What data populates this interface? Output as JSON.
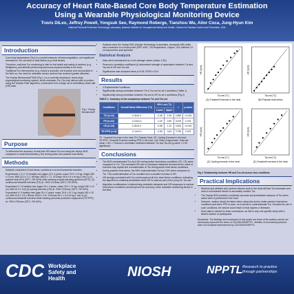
{
  "header": {
    "title": "Accuracy of Heart Rate-Based Core Body Temperature Estimation Using a Wearable Physiological Monitoring Device",
    "authors": "Travis DiLeo, Jeffrey Powell, Yongsuk Seo, Raymond Roberge, Tianzhou Wu, Aitor Coca, Jung-Hyun Kim",
    "affiliation": "National Personal Protective Technology Laboratory, National Institute for Occupational Safety and Health, Centers for Disease Control and Prevention, USA"
  },
  "introduction": {
    "heading": "Introduction",
    "items": [
      "Core body temperature (Tco) is a central measure of thermoregulation, and significant increases in Tco can lead to heat illness (e.g. heat stroke).",
      "Therefore, real-time Tco monitoring is vital for the health and safety of workers (e.g. firefighters) and athletes performing strenuous physical activity in the heat.",
      "Traditional Tco thermometry (e.g. rectal) is accurate, but invasive and not practical in the field; so, the need for wearable sensor devices has received greater attention.",
      "The Zephyr Bioharness® BH3 (Fig 1.) is a currently-developed, chest-strap physiological monitoring system, which estimates Tco (Tco-est) without pills or probes, using the Kalman Filter algorithm, constructed from a large set of ambulatory heart rate (HR) data."
    ],
    "figure_caption": "Fig 1. Zephyr Bioharness®"
  },
  "purpose": {
    "heading": "Purpose",
    "items": [
      "To determine the accuracy of real-time HR-based Tco-est using the Zephyr BH3 compared to rectal thermometry (Tre) during active and passive heat stress"
    ]
  },
  "methods": {
    "heading": "Methods",
    "items": [
      "Subjects completed 4 heat stress conditions in an environmental chamber",
      "Experiments 1 & 2: 12 healthy men [ages 23 ± 4 years, mass 79.9 ± 10 kg, height 180 ± 10 cm, BMI 23.3 ± 2.2, HRmax 186.6 ± 7.2, VO2max 49.8 ± 6.4 ml·kg-1·min-1] (1) passive heat (PH) (40°C, RH 50%) while wearing a liquid warming garment (45°C); (2) continuous treadmill exercise (TE) at ~50% VO2max (35°C, RH 50%).",
      "Experiment 3: 10 healthy men [ages 23 ± 2 years, mass 78.9 ± 12 kg, height 180 ± 10 cm, BMI 24.3 ± 3.0] (3) cycling exercise (CE) at ~50% VO2max (35°C, RH 50%).",
      "Experiment 4: 5 healthy men [age 26 ± 2 years, mass 76.6 ± 10.1 kg, height 180 ± 10 cm, BMI 23.8 ± 2.8, HRmax 184.6 ± 5.6, VO2max 50.2 ± 6.0 ml·kg-1·min-1] (4) continuous treadmill exercise while wearing personal protective equipment (TE+PPE) at ~50% VO2max (35°C, RH 60%)."
    ]
  },
  "methods_cont": {
    "items": [
      "Subjects wore the Zephyr BH3 (Zephyr Technology Corporation, Annapolis MD) while also connected to a rectal probe (REF-4491, YSI temperature, Dayton, OH) inserted 13 cm beyond the anal sphincter"
    ]
  },
  "statistics": {
    "heading": "Statistical Analysis",
    "items": [
      "Data were summarized as 1-min average values (mean ± SD)",
      "Pearson's correlation coefficient (r) determined strength of association between Tre and Tco-est & HR and Tco-est",
      "Significance was accepted when p<0.05; SPSS v.19.0"
    ]
  },
  "results": {
    "heading": "Results",
    "items": [
      "4 Experimental Conditions",
      "Significantly strong correlation between Tre & Tco-est for all 4 conditions (Table 1)",
      "Significantly strong correlation between Tco-est & HR for all 4 conditions (Fig 2)"
    ]
  },
  "table": {
    "title": "TABLE 1: Summary of the comparison between Tre and Tco-est",
    "header": [
      "Conditions",
      "Overall Mean Difference (°C)",
      "95% LoA (°C)",
      "Lower",
      "Upper",
      "r",
      "p-value"
    ],
    "rows": [
      [
        "TE (n=12)",
        "0.34±0.4",
        "-0.38",
        "1.05",
        "0.859",
        "<0.001"
      ],
      [
        "PH (n=22)",
        "-0.24±0.4",
        "-1.00",
        "0.69",
        "0.678",
        "0.031"
      ],
      [
        "CE (n=13)",
        "0.34±0.4",
        "-0.58",
        "1.12",
        "0.824",
        "<0.001"
      ],
      [
        "TE+PPE (n=8)",
        "-0.14±0.4",
        "-0.85",
        "0.64",
        "0.784",
        "0.021"
      ]
    ],
    "note": "TE, Treadmill Exercise in the heat; PH, Passive Heat; CE, Cycling Exercise in the heat; TE+PPE, Treadmill Exercise wearing PPE in the heat. LoA: limits of agreement. Data are mean ± SD. r: Pearson's correlation coefficient between Tre and Tco-est (p-value < 0.05 significant)."
  },
  "conclusions": {
    "heading": "Conclusions",
    "items": [
      "The BH3 overestimated Tco by 0.8% during active heat stress conditions (TE, CE) when compared to Tre. The increased HR due to increased metabolic demand at the onset of exercise may explain the overestimation of Tco during active heat stress conditions.",
      "During passive heat stress, the BH3 underestimated Tco by 0.5% when compared to Tre. This underestimation of Tco resulted from a smaller increase in HR.",
      "HR strongly correlated with Tco-est throughout all four heat stress conditions, indicating the algorithm is relatively predictable when HR is used as part of the proxy for Tco-est.",
      "Algorithm modifications in determining metabolic demands and HR responses to various heat stress conditions would improve the accuracy of the wearable monitoring device in the field."
    ]
  },
  "figure": {
    "caption": "Fig 2. Relationship between HR and Tco-est across four conditions",
    "panels": [
      {
        "caption": "(A) Treadmill Exercise in the heat",
        "x_label": "Tco-est (°C)",
        "y_label": "HR (bpm)",
        "xlim": [
          36.5,
          39.5
        ],
        "ylim": [
          60,
          190
        ],
        "x": [
          36.8,
          37.0,
          37.2,
          37.4,
          37.6,
          37.8,
          38.0,
          38.3,
          38.6,
          38.9,
          39.1
        ],
        "y": [
          72,
          88,
          98,
          110,
          118,
          128,
          138,
          150,
          160,
          172,
          178
        ]
      },
      {
        "caption": "(B) Physical heat stress",
        "x_label": "Tco-est (°C)",
        "y_label": "HR (bpm)",
        "xlim": [
          36.5,
          39.5
        ],
        "ylim": [
          60,
          190
        ],
        "x": [
          36.7,
          36.9,
          37.1,
          37.3,
          37.5,
          37.7,
          37.9,
          38.1,
          38.3
        ],
        "y": [
          66,
          75,
          84,
          92,
          101,
          110,
          118,
          126,
          134
        ]
      },
      {
        "caption": "(C) Cycling exercise in the heat",
        "x_label": "Tco-est (°C)",
        "y_label": "HR (bpm)",
        "xlim": [
          36.5,
          39.5
        ],
        "ylim": [
          60,
          190
        ],
        "x": [
          36.8,
          37.1,
          37.3,
          37.5,
          37.8,
          38.0,
          38.3,
          38.5,
          38.8
        ],
        "y": [
          78,
          95,
          106,
          116,
          128,
          136,
          148,
          156,
          168
        ]
      },
      {
        "caption": "(D) Treadmill exercise in the heat",
        "x_label": "Tco-est (°C)",
        "y_label": "HR (bpm)",
        "xlim": [
          36.5,
          39.5
        ],
        "ylim": [
          60,
          190
        ],
        "x": [
          36.9,
          37.1,
          37.4,
          37.7,
          38.0,
          38.3,
          38.6,
          38.9
        ],
        "y": [
          82,
          94,
          108,
          122,
          134,
          148,
          160,
          172
        ]
      }
    ]
  },
  "implications": {
    "heading": "Practical Implications",
    "items": [
      "Workers and athletes who perform intense work in the heat will face Tco increases and need a noninvasive device to accurately monitor Tco",
      "The Zephyr BH3 provides a relatively accurate and predictable measure of Tco when active work is performed in the heat.",
      "However, caution should be taken when using this device under passive heat stress conditions and when PPE is worn, as it seems to underestimate Tco. If trusted for use in such conditions, the device could result in heat injuries or illnesses.",
      "More data is needed to draw conclusions, as this is only one specific study with a limited number of participants."
    ],
    "disclaimer": "Disclaimer: The findings and conclusions in this poster are those of the authors and do not necessarily represent the views of CDC/NIOSH/NPPTL. Mention of commercial products does not constitute endorsement by CDC/NIOSH/NPPTL."
  },
  "footer": {
    "cdc": "CDC",
    "cdc_tagline": "Workplace Safety and Health",
    "niosh": "NIOSH",
    "npptl": "NPPTL",
    "npptl_tagline": "Research to practice through partnerships"
  }
}
